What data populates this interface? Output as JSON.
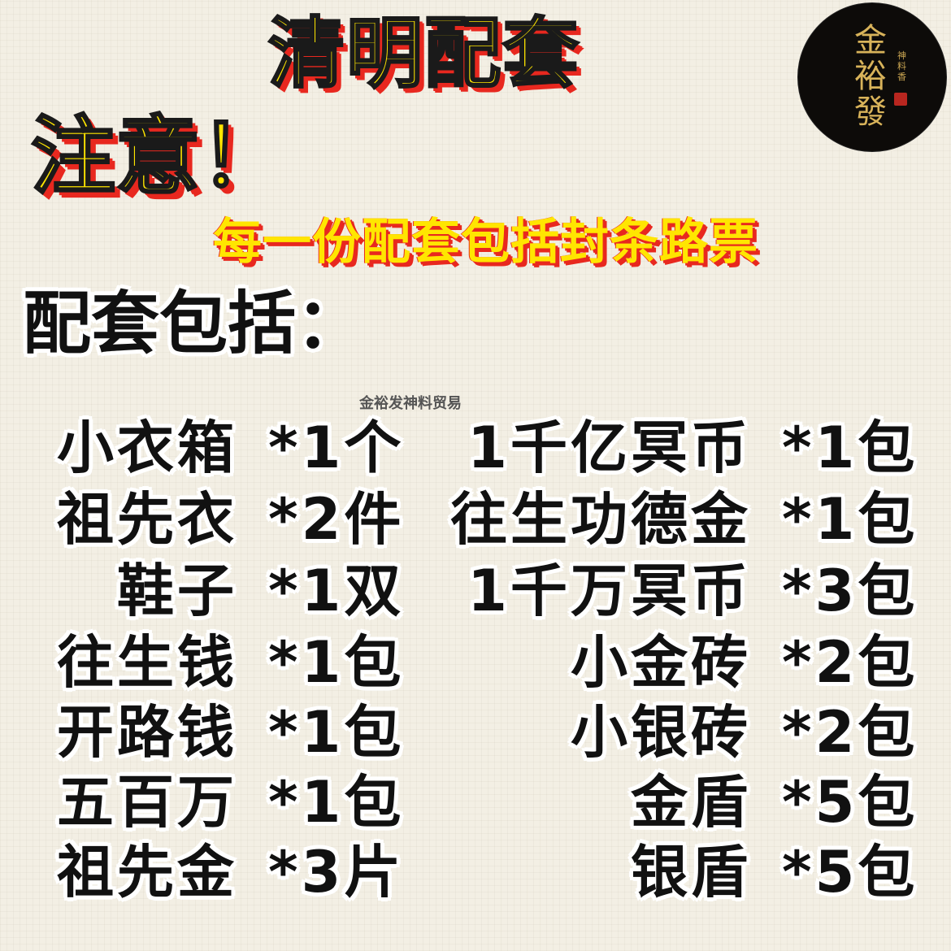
{
  "header": {
    "title": "清明配套",
    "notice": "注意！",
    "subtitle": "每一份配套包括封条路票",
    "includes_label": "配套包括："
  },
  "logo": {
    "brand": "金裕發",
    "side_text": "神料香"
  },
  "watermark": "金裕发神料贸易",
  "items_left": [
    {
      "name": "小衣箱",
      "qty": "*1个"
    },
    {
      "name": "祖先衣",
      "qty": "*2件"
    },
    {
      "name": "鞋子",
      "qty": "*1双"
    },
    {
      "name": "往生钱",
      "qty": "*1包"
    },
    {
      "name": "开路钱",
      "qty": "*1包"
    },
    {
      "name": "五百万",
      "qty": "*1包"
    },
    {
      "name": "祖先金",
      "qty": "*3片"
    }
  ],
  "items_right": [
    {
      "name": "1千亿冥币",
      "qty": "*1包"
    },
    {
      "name": "往生功德金",
      "qty": "*1包"
    },
    {
      "name": "1千万冥币",
      "qty": "*3包"
    },
    {
      "name": "小金砖",
      "qty": "*2包"
    },
    {
      "name": "小银砖",
      "qty": "*2包"
    },
    {
      "name": "金盾",
      "qty": "*5包"
    },
    {
      "name": "银盾",
      "qty": "*5包"
    }
  ],
  "colors": {
    "title_fill": "#ffe600",
    "title_shadow": "#e8281f",
    "text": "#111111",
    "background": "#f3efe4",
    "logo_bg": "#0d0b09",
    "logo_gold": "#d8b35a"
  }
}
